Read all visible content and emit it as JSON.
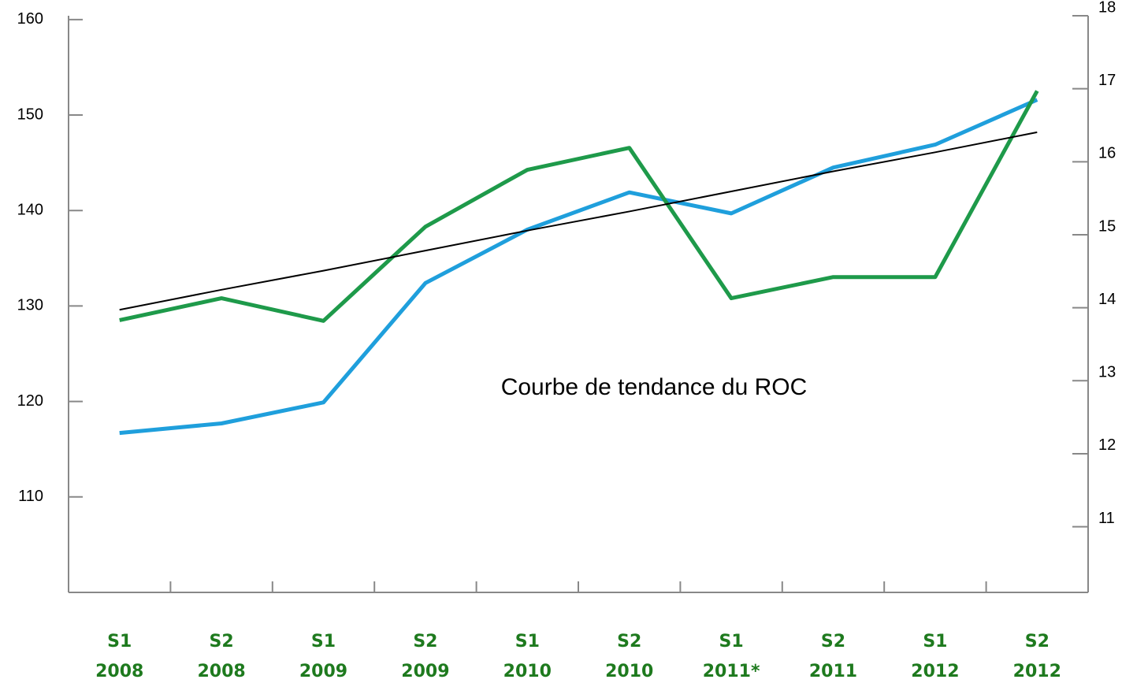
{
  "chart_data": {
    "type": "line",
    "categories": [
      [
        "S1",
        "2008"
      ],
      [
        "S2",
        "2008"
      ],
      [
        "S1",
        "2009"
      ],
      [
        "S2",
        "2009"
      ],
      [
        "S1",
        "2010"
      ],
      [
        "S2",
        "2010"
      ],
      [
        "S1",
        "2011*"
      ],
      [
        "S2",
        "2011"
      ],
      [
        "S1",
        "2012"
      ],
      [
        "S2",
        "2012"
      ]
    ],
    "series": [
      {
        "color": "#1f9fdc",
        "values": [
          116.7,
          117.7,
          119.9,
          132.4,
          138.0,
          141.9,
          139.7,
          144.5,
          146.9,
          151.6
        ]
      },
      {
        "color": "#1e9a4a",
        "axis": "y2",
        "values": [
          13.83,
          14.13,
          13.82,
          15.11,
          15.89,
          16.19,
          14.13,
          14.42,
          14.42,
          16.97
        ]
      },
      {
        "color": "#000000",
        "width": 2,
        "values": [
          129.6,
          131.7,
          133.7,
          135.8,
          137.9,
          139.9,
          142.0,
          144.1,
          146.1,
          148.2
        ]
      }
    ],
    "annotation": "Courbe de tendance du ROC",
    "ylim": [
      100,
      160.4
    ],
    "yticks": [
      110,
      120,
      130,
      140,
      150,
      160
    ],
    "y2lim": [
      10.1,
      18
    ],
    "y2ticks": [
      11,
      12,
      13,
      14,
      15,
      16,
      17,
      18
    ],
    "category_color": "#1e7a1e"
  }
}
